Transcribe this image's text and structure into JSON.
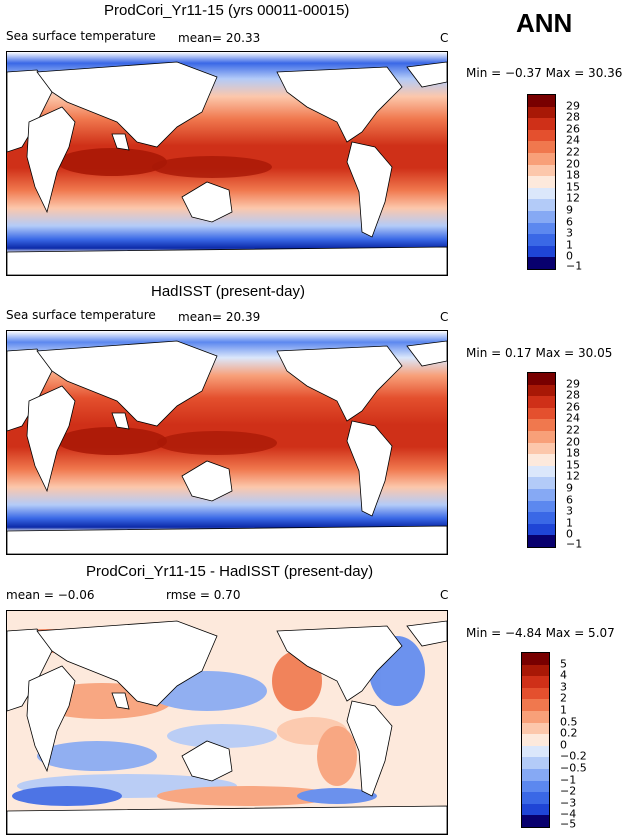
{
  "header": {
    "season": "ANN"
  },
  "colors": {
    "sst": [
      "#08006e",
      "#0c2aa8",
      "#1f45d6",
      "#3a68e6",
      "#5c88ef",
      "#86a9f4",
      "#b3cbf8",
      "#dbe7fb",
      "#fde9dc",
      "#fcc7ab",
      "#f8a079",
      "#f0784e",
      "#e4502e",
      "#cf3018",
      "#a81806",
      "#780000"
    ],
    "diff": [
      "#08006e",
      "#0c2aa8",
      "#1f45d6",
      "#3a68e6",
      "#5c88ef",
      "#86a9f4",
      "#b3cbf8",
      "#dbe7fb",
      "#fde9dc",
      "#fcc7ab",
      "#f8a079",
      "#f0784e",
      "#e4502e",
      "#cf3018",
      "#a81806",
      "#780000"
    ]
  },
  "panels": [
    {
      "title": "ProdCori_Yr11-15 (yrs 00011-00015)",
      "variable": "Sea surface temperature",
      "mean": "mean=   20.33",
      "units": "C",
      "minmax": "Min =   −0.37  Max =   30.36",
      "ticks": [
        "29",
        "28",
        "26",
        "24",
        "22",
        "20",
        "18",
        "15",
        "12",
        "9",
        "6",
        "3",
        "1",
        "0",
        "−1"
      ]
    },
    {
      "title": "HadISST (present-day)",
      "variable": "Sea surface temperature",
      "mean": "mean=   20.39",
      "units": "C",
      "minmax": "Min =    0.17  Max =   30.05",
      "ticks": [
        "29",
        "28",
        "26",
        "24",
        "22",
        "20",
        "18",
        "15",
        "12",
        "9",
        "6",
        "3",
        "1",
        "0",
        "−1"
      ]
    },
    {
      "title": "ProdCori_Yr11-15 - HadISST (present-day)",
      "mean": "mean =   −0.06",
      "rmse": "rmse =    0.70",
      "units": "C",
      "minmax": "Min =   −4.84  Max =    5.07",
      "ticks": [
        "5",
        "4",
        "3",
        "2",
        "1",
        "0.5",
        "0.2",
        "0",
        "−0.2",
        "−0.5",
        "−1",
        "−2",
        "−3",
        "−4",
        "−5"
      ]
    }
  ]
}
